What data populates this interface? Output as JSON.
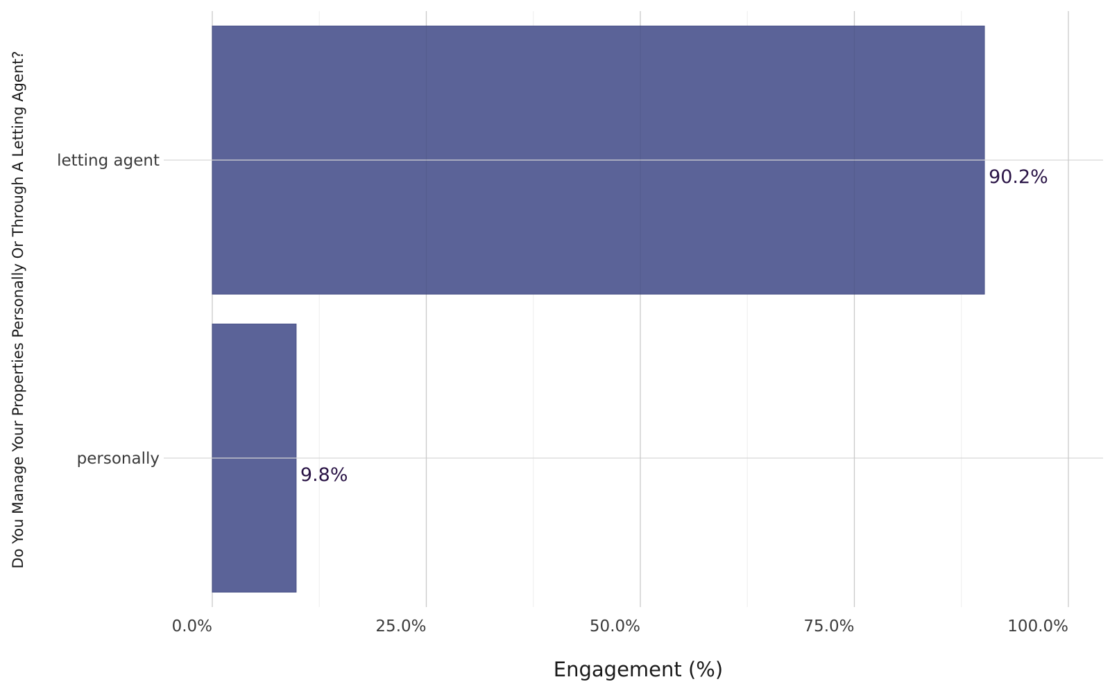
{
  "chart_data": {
    "type": "bar",
    "orientation": "horizontal",
    "title": "",
    "xlabel": "Engagement (%)",
    "ylabel": "Do You Manage Your Properties Personally Or Through A Letting Agent?",
    "categories": [
      "letting agent",
      "personally"
    ],
    "values": [
      90.2,
      9.8
    ],
    "data_labels": [
      "90.2%",
      "9.8%"
    ],
    "xlim": [
      0,
      100
    ],
    "x_ticks": [
      0,
      25,
      50,
      75,
      100
    ],
    "x_tick_labels": [
      "0.0%",
      "25.0%",
      "50.0%",
      "75.0%",
      "100.0%"
    ],
    "grid": true,
    "legend": "none",
    "colors": {
      "bar": "#5b6398",
      "bar_border": "#4a5288",
      "data_label": "#2a1446",
      "grid_major": "#d6d6d6",
      "grid_minor": "#ededed"
    }
  }
}
